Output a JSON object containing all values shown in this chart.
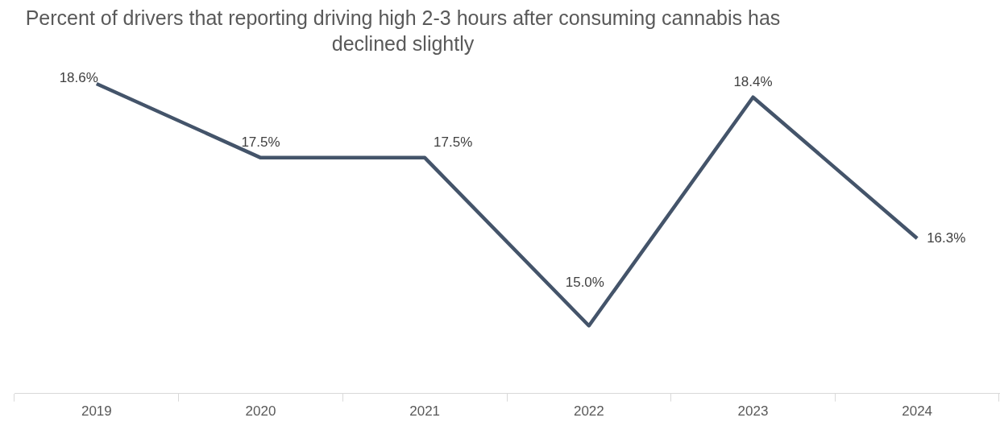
{
  "chart_data": {
    "type": "line",
    "title": "Percent of drivers that reporting driving high 2-3 hours after consuming cannabis has declined slightly",
    "categories": [
      "2019",
      "2020",
      "2021",
      "2022",
      "2023",
      "2024"
    ],
    "values": [
      18.6,
      17.5,
      17.5,
      15.0,
      18.4,
      16.3
    ],
    "value_labels": [
      "18.6%",
      "17.5%",
      "17.5%",
      "15.0%",
      "18.4%",
      "16.3%"
    ],
    "color": "#44546a",
    "relative": false,
    "grid": false,
    "legend": false,
    "marker": "none",
    "line_style": "solid"
  }
}
